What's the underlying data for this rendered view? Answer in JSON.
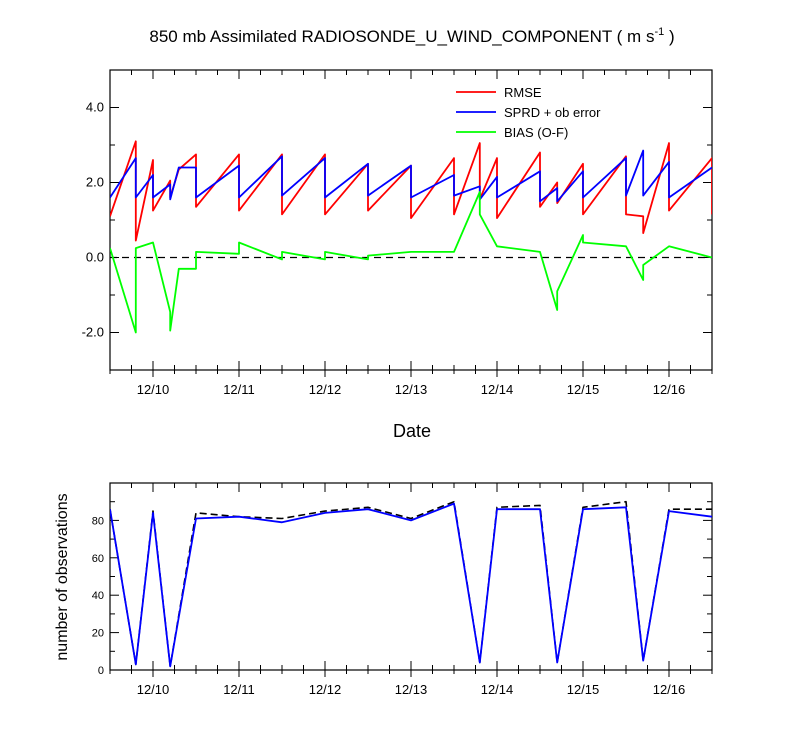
{
  "title": {
    "main": "850 mb Assimilated RADIOSONDE_U_WIND_COMPONENT ( m s",
    "sup": "-1",
    "close": " )"
  },
  "chart_data": [
    {
      "type": "line",
      "xlabel": "Date",
      "ylabel": "",
      "ylim": [
        -3.0,
        5.0
      ],
      "xlim": [
        "12/09 12:00",
        "12/16 12:00"
      ],
      "x_ticks": [
        "12/10",
        "12/11",
        "12/12",
        "12/13",
        "12/14",
        "12/15",
        "12/16"
      ],
      "y_ticks": [
        "-2.0",
        "0.0",
        "2.0",
        "4.0"
      ],
      "reference_line": {
        "y": 0.0,
        "style": "dashed",
        "color": "#000000"
      },
      "legend_position": "top-right",
      "x_unit": "6-hourly analysis times (12/09 12:00 to 12/16 12:00)",
      "series": [
        {
          "name": "RMSE",
          "color": "#ff0000",
          "points": [
            [
              0,
              1.1
            ],
            [
              3,
              3.1
            ],
            [
              3,
              0.45
            ],
            [
              5,
              2.6
            ],
            [
              5,
              1.25
            ],
            [
              7,
              2.05
            ],
            [
              7,
              1.6
            ],
            [
              8,
              2.35
            ],
            [
              10,
              2.75
            ],
            [
              10,
              1.35
            ],
            [
              15,
              2.75
            ],
            [
              15,
              1.25
            ],
            [
              20,
              2.75
            ],
            [
              20,
              1.15
            ],
            [
              25,
              2.75
            ],
            [
              25,
              1.15
            ],
            [
              30,
              2.5
            ],
            [
              30,
              1.25
            ],
            [
              35,
              2.45
            ],
            [
              35,
              1.05
            ],
            [
              40,
              2.65
            ],
            [
              40,
              1.15
            ],
            [
              43,
              3.05
            ],
            [
              43,
              1.55
            ],
            [
              45,
              2.65
            ],
            [
              45,
              1.05
            ],
            [
              50,
              2.8
            ],
            [
              50,
              1.35
            ],
            [
              52,
              2.0
            ],
            [
              52,
              1.45
            ],
            [
              55,
              2.5
            ],
            [
              55,
              1.15
            ],
            [
              60,
              2.7
            ],
            [
              60,
              1.15
            ],
            [
              62,
              1.1
            ],
            [
              62,
              0.65
            ],
            [
              65,
              3.05
            ],
            [
              65,
              1.25
            ],
            [
              70,
              2.65
            ],
            [
              70,
              1.15
            ]
          ]
        },
        {
          "name": "SPRD + ob error",
          "color": "#0000ff",
          "points": [
            [
              0,
              1.6
            ],
            [
              3,
              2.65
            ],
            [
              3,
              1.6
            ],
            [
              5,
              2.2
            ],
            [
              5,
              1.6
            ],
            [
              7,
              1.95
            ],
            [
              7,
              1.55
            ],
            [
              8,
              2.4
            ],
            [
              10,
              2.4
            ],
            [
              10,
              1.6
            ],
            [
              15,
              2.45
            ],
            [
              15,
              1.6
            ],
            [
              20,
              2.7
            ],
            [
              20,
              1.65
            ],
            [
              25,
              2.65
            ],
            [
              25,
              1.6
            ],
            [
              30,
              2.5
            ],
            [
              30,
              1.65
            ],
            [
              35,
              2.45
            ],
            [
              35,
              1.6
            ],
            [
              40,
              2.2
            ],
            [
              40,
              1.65
            ],
            [
              43,
              1.9
            ],
            [
              43,
              1.55
            ],
            [
              45,
              2.15
            ],
            [
              45,
              1.6
            ],
            [
              50,
              2.3
            ],
            [
              50,
              1.5
            ],
            [
              52,
              1.85
            ],
            [
              52,
              1.5
            ],
            [
              55,
              2.3
            ],
            [
              55,
              1.6
            ],
            [
              60,
              2.65
            ],
            [
              60,
              1.65
            ],
            [
              62,
              2.85
            ],
            [
              62,
              1.65
            ],
            [
              65,
              2.55
            ],
            [
              65,
              1.6
            ],
            [
              70,
              2.4
            ]
          ]
        },
        {
          "name": "BIAS (O-F)",
          "color": "#00ff00",
          "points": [
            [
              0,
              0.25
            ],
            [
              3,
              -2.0
            ],
            [
              3,
              0.25
            ],
            [
              5,
              0.4
            ],
            [
              7,
              -1.45
            ],
            [
              7,
              -1.95
            ],
            [
              8,
              -0.3
            ],
            [
              10,
              -0.3
            ],
            [
              10,
              0.15
            ],
            [
              15,
              0.1
            ],
            [
              15,
              0.4
            ],
            [
              20,
              -0.05
            ],
            [
              20,
              0.15
            ],
            [
              25,
              -0.05
            ],
            [
              25,
              0.15
            ],
            [
              30,
              -0.05
            ],
            [
              30,
              0.05
            ],
            [
              35,
              0.15
            ],
            [
              40,
              0.15
            ],
            [
              43,
              1.75
            ],
            [
              43,
              1.15
            ],
            [
              45,
              0.3
            ],
            [
              50,
              0.15
            ],
            [
              52,
              -1.4
            ],
            [
              52,
              -0.9
            ],
            [
              55,
              0.6
            ],
            [
              55,
              0.4
            ],
            [
              60,
              0.3
            ],
            [
              62,
              -0.6
            ],
            [
              62,
              -0.2
            ],
            [
              65,
              0.3
            ],
            [
              70,
              0.0
            ]
          ]
        }
      ]
    },
    {
      "type": "line",
      "xlabel": "",
      "ylabel": "number of observations",
      "ylim": [
        0,
        100
      ],
      "xlim": [
        "12/09 12:00",
        "12/16 12:00"
      ],
      "x_ticks": [
        "12/10",
        "12/11",
        "12/12",
        "12/13",
        "12/14",
        "12/15",
        "12/16"
      ],
      "y_ticks": [
        "0",
        "20",
        "40",
        "60",
        "80"
      ],
      "x_unit": "6-hourly analysis times (12/09 12:00 to 12/16 12:00)",
      "series": [
        {
          "name": "",
          "style": "dashed",
          "color": "#000000",
          "points": [
            [
              0,
              86
            ],
            [
              3,
              3
            ],
            [
              5,
              85
            ],
            [
              7,
              2
            ],
            [
              10,
              84
            ],
            [
              15,
              82
            ],
            [
              20,
              81
            ],
            [
              25,
              85
            ],
            [
              30,
              87
            ],
            [
              35,
              81
            ],
            [
              40,
              90
            ],
            [
              43,
              4
            ],
            [
              45,
              87
            ],
            [
              50,
              88
            ],
            [
              52,
              4
            ],
            [
              55,
              87
            ],
            [
              60,
              90
            ],
            [
              62,
              5
            ],
            [
              65,
              86
            ],
            [
              70,
              86
            ]
          ]
        },
        {
          "name": "",
          "style": "solid",
          "color": "#0000ff",
          "points": [
            [
              0,
              86
            ],
            [
              3,
              3
            ],
            [
              5,
              84
            ],
            [
              7,
              2
            ],
            [
              10,
              81
            ],
            [
              15,
              82
            ],
            [
              20,
              79
            ],
            [
              25,
              84
            ],
            [
              30,
              86
            ],
            [
              35,
              80
            ],
            [
              40,
              89
            ],
            [
              43,
              4
            ],
            [
              45,
              86
            ],
            [
              50,
              86
            ],
            [
              52,
              4
            ],
            [
              55,
              86
            ],
            [
              60,
              87
            ],
            [
              62,
              5
            ],
            [
              65,
              85
            ],
            [
              70,
              82
            ]
          ]
        }
      ]
    }
  ]
}
